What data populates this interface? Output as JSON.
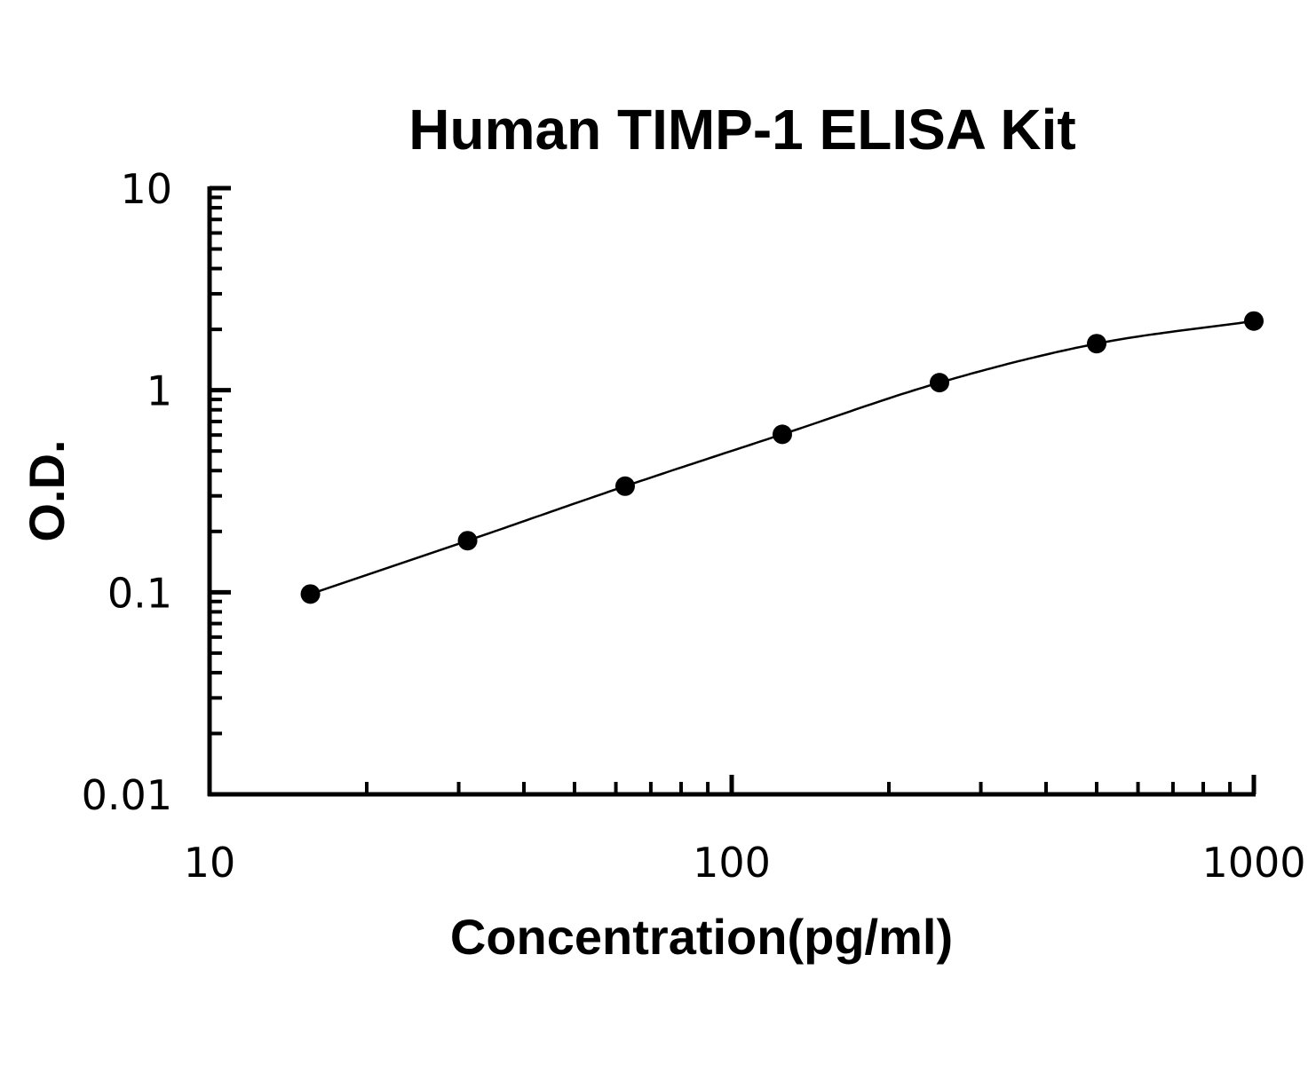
{
  "chart_data": {
    "type": "scatter",
    "title": "Human TIMP-1 ELISA Kit",
    "xlabel": "Concentration(pg/ml)",
    "ylabel": "O.D.",
    "x_scale": "log",
    "y_scale": "log",
    "xlim": [
      10,
      1000
    ],
    "ylim": [
      0.01,
      10
    ],
    "x_ticks": [
      "10",
      "100",
      "1000"
    ],
    "y_ticks": [
      "0.01",
      "0.1",
      "1",
      "10"
    ],
    "grid": false,
    "fit_line": true,
    "series": [
      {
        "x": [
          15.6,
          31.2,
          62.5,
          125,
          250,
          500,
          1000
        ],
        "y": [
          0.098,
          0.18,
          0.335,
          0.605,
          1.09,
          1.7,
          2.2
        ]
      }
    ],
    "colors": {
      "line": "#000000",
      "marker": "#000000",
      "axis": "#000000"
    }
  }
}
